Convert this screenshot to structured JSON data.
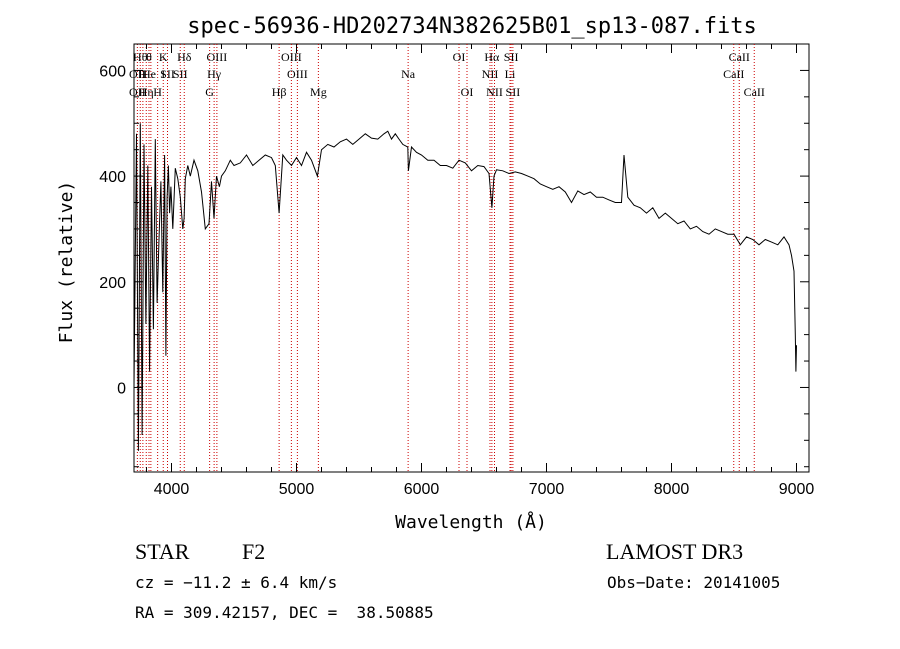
{
  "chart_data": {
    "type": "line",
    "title": "spec-56936-HD202734N382625B01_sp13-087.fits",
    "xlabel": "Wavelength (Å)",
    "ylabel": "Flux (relative)",
    "xlim": [
      3700,
      9100
    ],
    "ylim": [
      -160,
      650
    ],
    "xticks": [
      4000,
      5000,
      6000,
      7000,
      8000,
      9000
    ],
    "yticks": [
      0,
      200,
      400,
      600
    ],
    "xtick_labels": [
      "4000",
      "5000",
      "6000",
      "7000",
      "8000",
      "9000"
    ],
    "ytick_labels": [
      "0",
      "200",
      "400",
      "600"
    ],
    "series": [
      {
        "name": "spectrum",
        "x": [
          3700,
          3720,
          3735,
          3750,
          3765,
          3780,
          3795,
          3810,
          3825,
          3840,
          3855,
          3870,
          3885,
          3900,
          3915,
          3930,
          3945,
          3955,
          3965,
          3975,
          3985,
          3995,
          4010,
          4030,
          4050,
          4070,
          4090,
          4101,
          4110,
          4130,
          4150,
          4180,
          4210,
          4240,
          4270,
          4300,
          4320,
          4340,
          4360,
          4383,
          4400,
          4430,
          4470,
          4500,
          4550,
          4600,
          4650,
          4700,
          4750,
          4800,
          4830,
          4861,
          4890,
          4920,
          4960,
          5000,
          5040,
          5080,
          5120,
          5167,
          5200,
          5250,
          5300,
          5350,
          5400,
          5450,
          5500,
          5550,
          5600,
          5650,
          5700,
          5730,
          5760,
          5790,
          5820,
          5850,
          5890,
          5895,
          5920,
          5960,
          6000,
          6050,
          6100,
          6150,
          6200,
          6250,
          6300,
          6350,
          6400,
          6450,
          6500,
          6540,
          6563,
          6580,
          6600,
          6650,
          6700,
          6750,
          6800,
          6850,
          6900,
          6950,
          7000,
          7050,
          7100,
          7150,
          7200,
          7250,
          7300,
          7350,
          7400,
          7450,
          7500,
          7550,
          7600,
          7620,
          7650,
          7700,
          7750,
          7800,
          7850,
          7900,
          7950,
          8000,
          8050,
          8100,
          8150,
          8200,
          8250,
          8300,
          8350,
          8400,
          8450,
          8500,
          8550,
          8600,
          8650,
          8700,
          8750,
          8800,
          8850,
          8900,
          8940,
          8960,
          8980,
          8990,
          8995,
          9000
        ],
        "y": [
          0,
          480,
          -120,
          500,
          -90,
          460,
          120,
          420,
          30,
          380,
          110,
          470,
          160,
          280,
          390,
          180,
          440,
          60,
          360,
          420,
          330,
          380,
          300,
          415,
          395,
          360,
          300,
          320,
          395,
          420,
          400,
          430,
          410,
          370,
          300,
          310,
          390,
          320,
          400,
          380,
          400,
          410,
          430,
          420,
          425,
          440,
          420,
          430,
          440,
          435,
          420,
          330,
          440,
          430,
          420,
          435,
          420,
          445,
          430,
          400,
          450,
          460,
          455,
          465,
          470,
          460,
          470,
          480,
          472,
          470,
          480,
          485,
          470,
          480,
          470,
          460,
          455,
          410,
          455,
          445,
          440,
          430,
          430,
          420,
          420,
          415,
          430,
          425,
          410,
          420,
          418,
          405,
          340,
          400,
          412,
          410,
          405,
          408,
          405,
          400,
          395,
          385,
          380,
          375,
          380,
          370,
          350,
          372,
          365,
          370,
          360,
          360,
          355,
          350,
          350,
          440,
          360,
          345,
          340,
          330,
          340,
          320,
          330,
          320,
          310,
          315,
          300,
          305,
          295,
          290,
          300,
          295,
          290,
          290,
          270,
          285,
          280,
          270,
          280,
          275,
          270,
          285,
          270,
          250,
          220,
          100,
          30,
          80
        ]
      }
    ],
    "line_labels": [
      {
        "x": 3727,
        "row": 1,
        "text": "OII"
      },
      {
        "x": 3727,
        "row": 2,
        "text": "OII"
      },
      {
        "x": 3750,
        "row": 0,
        "text": "Hθ"
      },
      {
        "x": 3771,
        "row": 1,
        "text": "H"
      },
      {
        "x": 3798,
        "row": 2,
        "text": "Hη"
      },
      {
        "x": 3820,
        "row": 0,
        "text": "θ"
      },
      {
        "x": 3820,
        "row": 1,
        "text": "He"
      },
      {
        "x": 3889,
        "row": 2,
        "text": "H"
      },
      {
        "x": 3934,
        "row": 0,
        "text": "K"
      },
      {
        "x": 3934,
        "row": 1,
        "text": "I"
      },
      {
        "x": 3968,
        "row": 1,
        "text": "SII"
      },
      {
        "x": 4102,
        "row": 0,
        "text": "Hδ"
      },
      {
        "x": 4070,
        "row": 1,
        "text": "SII"
      },
      {
        "x": 4363,
        "row": 0,
        "text": "OIII"
      },
      {
        "x": 4341,
        "row": 1,
        "text": "Hγ"
      },
      {
        "x": 4305,
        "row": 2,
        "text": "G"
      },
      {
        "x": 4861,
        "row": 2,
        "text": "Hβ"
      },
      {
        "x": 4959,
        "row": 0,
        "text": "OIII"
      },
      {
        "x": 5007,
        "row": 1,
        "text": "OIII"
      },
      {
        "x": 5175,
        "row": 2,
        "text": "Mg"
      },
      {
        "x": 5893,
        "row": 1,
        "text": "Na"
      },
      {
        "x": 6300,
        "row": 0,
        "text": "OI"
      },
      {
        "x": 6364,
        "row": 2,
        "text": "OI"
      },
      {
        "x": 6563,
        "row": 0,
        "text": "Hα"
      },
      {
        "x": 6548,
        "row": 1,
        "text": "NII"
      },
      {
        "x": 6584,
        "row": 2,
        "text": "NII"
      },
      {
        "x": 6717,
        "row": 0,
        "text": "SII"
      },
      {
        "x": 6708,
        "row": 1,
        "text": "Li"
      },
      {
        "x": 6731,
        "row": 2,
        "text": "SII"
      },
      {
        "x": 8542,
        "row": 0,
        "text": "CaII"
      },
      {
        "x": 8498,
        "row": 1,
        "text": "CaII"
      },
      {
        "x": 8662,
        "row": 2,
        "text": "CaII"
      }
    ],
    "line_positions": [
      3727,
      3750,
      3771,
      3798,
      3820,
      3835,
      3889,
      3934,
      3968,
      4070,
      4102,
      4305,
      4341,
      4363,
      4861,
      4959,
      5007,
      5175,
      5893,
      6300,
      6364,
      6548,
      6563,
      6584,
      6708,
      6717,
      6731,
      8498,
      8542,
      8662
    ],
    "colors": {
      "spectrum": "#000000",
      "lines": "#cc0000",
      "axes": "#000000"
    }
  },
  "info": {
    "object_class": "STAR",
    "subclass": "F2",
    "survey": "LAMOST DR3",
    "cz": "cz = −11.2 ± 6.4 km/s",
    "obs_date": "Obs−Date: 20141005",
    "coords": "RA = 309.42157, DEC =  38.50885"
  }
}
